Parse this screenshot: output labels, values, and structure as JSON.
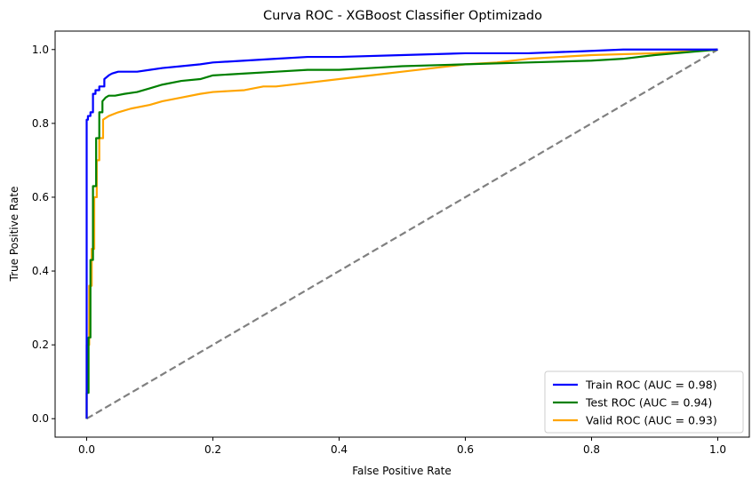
{
  "chart_data": {
    "type": "line",
    "title": "Curva ROC - XGBoost Classifier Optimizado",
    "xlabel": "False Positive Rate",
    "ylabel": "True Positive Rate",
    "xlim": [
      -0.05,
      1.05
    ],
    "ylim": [
      -0.05,
      1.05
    ],
    "xticks": [
      0.0,
      0.2,
      0.4,
      0.6,
      0.8,
      1.0
    ],
    "yticks": [
      0.0,
      0.2,
      0.4,
      0.6,
      0.8,
      1.0
    ],
    "xtick_labels": [
      "0.0",
      "0.2",
      "0.4",
      "0.6",
      "0.8",
      "1.0"
    ],
    "ytick_labels": [
      "0.0",
      "0.2",
      "0.4",
      "0.6",
      "0.8",
      "1.0"
    ],
    "grid": false,
    "legend_position": "lower-right",
    "series": [
      {
        "name": "Train ROC (AUC = 0.98)",
        "color": "#0000ff",
        "style": "solid",
        "x": [
          0.0,
          0.0,
          0.002,
          0.002,
          0.006,
          0.006,
          0.01,
          0.01,
          0.014,
          0.014,
          0.02,
          0.02,
          0.028,
          0.028,
          0.035,
          0.04,
          0.05,
          0.06,
          0.08,
          0.1,
          0.12,
          0.15,
          0.18,
          0.2,
          0.25,
          0.3,
          0.35,
          0.4,
          0.5,
          0.6,
          0.7,
          0.78,
          0.85,
          1.0
        ],
        "y": [
          0.0,
          0.81,
          0.81,
          0.82,
          0.82,
          0.83,
          0.83,
          0.88,
          0.88,
          0.89,
          0.89,
          0.9,
          0.9,
          0.92,
          0.93,
          0.935,
          0.94,
          0.94,
          0.94,
          0.945,
          0.95,
          0.955,
          0.96,
          0.965,
          0.97,
          0.975,
          0.98,
          0.98,
          0.985,
          0.99,
          0.99,
          0.995,
          1.0,
          1.0
        ]
      },
      {
        "name": "Test ROC (AUC = 0.94)",
        "color": "#008000",
        "style": "solid",
        "x": [
          0.0,
          0.0,
          0.003,
          0.003,
          0.006,
          0.006,
          0.01,
          0.01,
          0.015,
          0.015,
          0.02,
          0.02,
          0.025,
          0.025,
          0.03,
          0.035,
          0.045,
          0.06,
          0.08,
          0.1,
          0.12,
          0.15,
          0.18,
          0.2,
          0.25,
          0.3,
          0.35,
          0.4,
          0.45,
          0.5,
          0.6,
          0.7,
          0.8,
          0.85,
          0.9,
          1.0
        ],
        "y": [
          0.0,
          0.07,
          0.07,
          0.22,
          0.22,
          0.43,
          0.43,
          0.63,
          0.63,
          0.76,
          0.76,
          0.83,
          0.83,
          0.86,
          0.87,
          0.875,
          0.875,
          0.88,
          0.885,
          0.895,
          0.905,
          0.915,
          0.92,
          0.93,
          0.935,
          0.94,
          0.945,
          0.945,
          0.95,
          0.955,
          0.96,
          0.965,
          0.97,
          0.975,
          0.985,
          1.0
        ]
      },
      {
        "name": "Valid ROC (AUC = 0.93)",
        "color": "#ffa500",
        "style": "solid",
        "x": [
          0.0,
          0.0,
          0.004,
          0.004,
          0.008,
          0.008,
          0.012,
          0.012,
          0.016,
          0.016,
          0.02,
          0.02,
          0.026,
          0.026,
          0.035,
          0.05,
          0.07,
          0.1,
          0.12,
          0.15,
          0.18,
          0.2,
          0.25,
          0.28,
          0.3,
          0.35,
          0.4,
          0.45,
          0.5,
          0.55,
          0.6,
          0.65,
          0.7,
          0.75,
          0.8,
          0.9,
          1.0
        ],
        "y": [
          0.0,
          0.2,
          0.2,
          0.36,
          0.36,
          0.46,
          0.46,
          0.6,
          0.6,
          0.7,
          0.7,
          0.76,
          0.76,
          0.81,
          0.82,
          0.83,
          0.84,
          0.85,
          0.86,
          0.87,
          0.88,
          0.885,
          0.89,
          0.9,
          0.9,
          0.91,
          0.92,
          0.93,
          0.94,
          0.95,
          0.96,
          0.965,
          0.975,
          0.98,
          0.985,
          0.99,
          1.0
        ]
      },
      {
        "name": "",
        "color": "#808080",
        "style": "dashed",
        "x": [
          0.0,
          1.0
        ],
        "y": [
          0.0,
          1.0
        ]
      }
    ]
  }
}
